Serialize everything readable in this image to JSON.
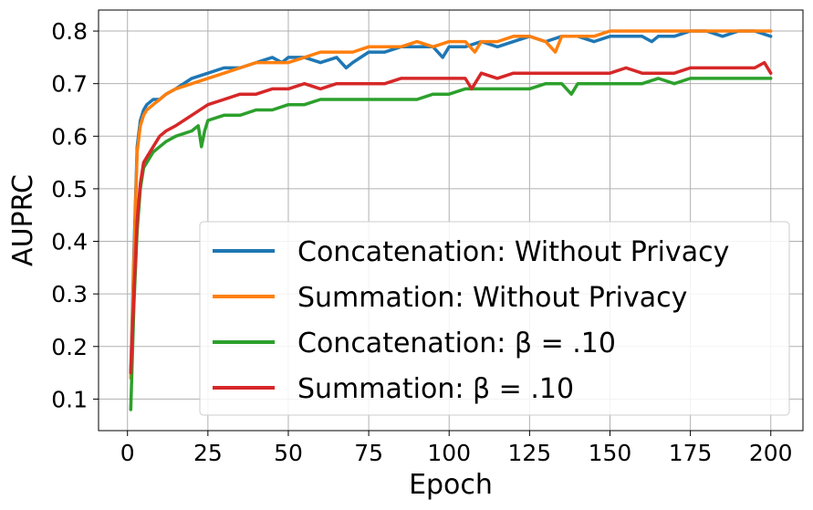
{
  "chart_data": {
    "type": "line",
    "xlabel": "Epoch",
    "ylabel": "AUPRC",
    "xlim": [
      -9,
      210
    ],
    "ylim": [
      0.04,
      0.84
    ],
    "xticks": [
      0,
      25,
      50,
      75,
      100,
      125,
      150,
      175,
      200
    ],
    "yticks": [
      0.1,
      0.2,
      0.3,
      0.4,
      0.5,
      0.6,
      0.7,
      0.8
    ],
    "ytick_labels": [
      "0.1",
      "0.2",
      "0.3",
      "0.4",
      "0.5",
      "0.6",
      "0.7",
      "0.8"
    ],
    "grid": true,
    "legend_position": "lower-right",
    "series": [
      {
        "name": "Concatenation: Without Privacy",
        "color": "#1f77b4",
        "x": [
          1,
          2,
          3,
          4,
          5,
          6,
          8,
          10,
          12,
          15,
          20,
          25,
          30,
          35,
          40,
          45,
          48,
          50,
          55,
          60,
          65,
          68,
          70,
          75,
          80,
          85,
          90,
          95,
          98,
          100,
          105,
          110,
          115,
          120,
          125,
          130,
          135,
          140,
          145,
          150,
          155,
          160,
          163,
          165,
          170,
          175,
          180,
          185,
          190,
          195,
          200
        ],
        "values": [
          0.15,
          0.38,
          0.58,
          0.63,
          0.65,
          0.66,
          0.67,
          0.67,
          0.68,
          0.69,
          0.71,
          0.72,
          0.73,
          0.73,
          0.74,
          0.75,
          0.74,
          0.75,
          0.75,
          0.74,
          0.75,
          0.73,
          0.74,
          0.76,
          0.76,
          0.77,
          0.77,
          0.77,
          0.75,
          0.77,
          0.77,
          0.78,
          0.77,
          0.78,
          0.79,
          0.78,
          0.79,
          0.79,
          0.78,
          0.79,
          0.79,
          0.79,
          0.78,
          0.79,
          0.79,
          0.8,
          0.8,
          0.79,
          0.8,
          0.8,
          0.79
        ]
      },
      {
        "name": "Summation: Without Privacy",
        "color": "#ff7f0e",
        "x": [
          1,
          2,
          3,
          4,
          5,
          6,
          8,
          10,
          12,
          15,
          20,
          25,
          30,
          35,
          40,
          45,
          50,
          55,
          60,
          65,
          70,
          75,
          80,
          85,
          90,
          95,
          100,
          105,
          108,
          110,
          115,
          120,
          125,
          130,
          133,
          135,
          140,
          145,
          150,
          155,
          160,
          165,
          170,
          175,
          180,
          185,
          190,
          195,
          200
        ],
        "values": [
          0.14,
          0.36,
          0.57,
          0.62,
          0.64,
          0.65,
          0.66,
          0.67,
          0.68,
          0.69,
          0.7,
          0.71,
          0.72,
          0.73,
          0.74,
          0.74,
          0.74,
          0.75,
          0.76,
          0.76,
          0.76,
          0.77,
          0.77,
          0.77,
          0.78,
          0.77,
          0.78,
          0.78,
          0.76,
          0.78,
          0.78,
          0.79,
          0.79,
          0.78,
          0.76,
          0.79,
          0.79,
          0.79,
          0.8,
          0.8,
          0.8,
          0.8,
          0.8,
          0.8,
          0.8,
          0.8,
          0.8,
          0.8,
          0.8
        ]
      },
      {
        "name": "Concatenation: β = .10",
        "color": "#2ca02c",
        "x": [
          1,
          2,
          3,
          4,
          5,
          6,
          8,
          10,
          12,
          15,
          20,
          22,
          23,
          24,
          25,
          30,
          35,
          40,
          45,
          50,
          55,
          60,
          65,
          70,
          75,
          80,
          85,
          90,
          95,
          100,
          105,
          110,
          115,
          120,
          125,
          130,
          135,
          138,
          140,
          145,
          150,
          155,
          160,
          165,
          170,
          175,
          180,
          185,
          190,
          195,
          200
        ],
        "values": [
          0.08,
          0.28,
          0.42,
          0.5,
          0.54,
          0.55,
          0.57,
          0.58,
          0.59,
          0.6,
          0.61,
          0.62,
          0.58,
          0.61,
          0.63,
          0.64,
          0.64,
          0.65,
          0.65,
          0.66,
          0.66,
          0.67,
          0.67,
          0.67,
          0.67,
          0.67,
          0.67,
          0.67,
          0.68,
          0.68,
          0.69,
          0.69,
          0.69,
          0.69,
          0.69,
          0.7,
          0.7,
          0.68,
          0.7,
          0.7,
          0.7,
          0.7,
          0.7,
          0.71,
          0.7,
          0.71,
          0.71,
          0.71,
          0.71,
          0.71,
          0.71
        ]
      },
      {
        "name": "Summation: β = .10",
        "color": "#d62728",
        "x": [
          1,
          2,
          3,
          4,
          5,
          6,
          8,
          10,
          12,
          15,
          20,
          25,
          30,
          35,
          40,
          45,
          50,
          55,
          60,
          65,
          70,
          75,
          80,
          85,
          90,
          95,
          100,
          105,
          107,
          110,
          115,
          120,
          125,
          130,
          135,
          140,
          145,
          150,
          155,
          160,
          165,
          170,
          175,
          180,
          185,
          190,
          195,
          198,
          200
        ],
        "values": [
          0.15,
          0.3,
          0.44,
          0.51,
          0.55,
          0.56,
          0.58,
          0.6,
          0.61,
          0.62,
          0.64,
          0.66,
          0.67,
          0.68,
          0.68,
          0.69,
          0.69,
          0.7,
          0.69,
          0.7,
          0.7,
          0.7,
          0.7,
          0.71,
          0.71,
          0.71,
          0.71,
          0.71,
          0.69,
          0.72,
          0.71,
          0.72,
          0.72,
          0.72,
          0.72,
          0.72,
          0.72,
          0.72,
          0.73,
          0.72,
          0.72,
          0.72,
          0.73,
          0.73,
          0.73,
          0.73,
          0.73,
          0.74,
          0.72
        ]
      }
    ]
  }
}
